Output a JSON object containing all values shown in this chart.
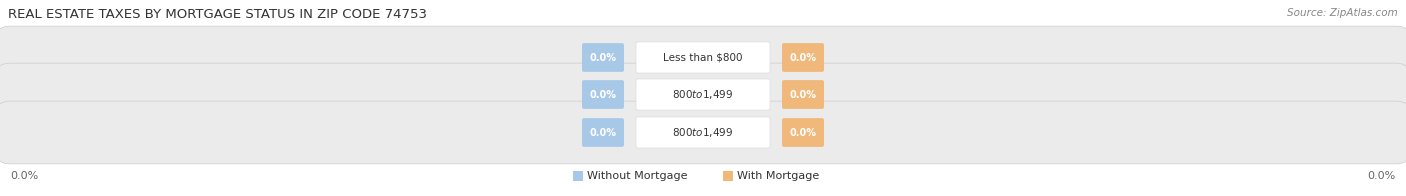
{
  "title": "REAL ESTATE TAXES BY MORTGAGE STATUS IN ZIP CODE 74753",
  "source": "Source: ZipAtlas.com",
  "categories": [
    "Less than $800",
    "$800 to $1,499",
    "$800 to $1,499"
  ],
  "without_mortgage": [
    0.0,
    0.0,
    0.0
  ],
  "with_mortgage": [
    0.0,
    0.0,
    0.0
  ],
  "bar_color_left": "#a8c8e8",
  "bar_color_right": "#f0b87a",
  "label_color_left": "#7aadd4",
  "label_color_right": "#e8a060",
  "bg_color": "#ffffff",
  "bar_bg_color": "#e8e8e8",
  "bar_bg_color2": "#f0f0f0",
  "legend_left": "Without Mortgage",
  "legend_right": "With Mortgage",
  "axis_label_left": "0.0%",
  "axis_label_right": "0.0%",
  "title_fontsize": 9.5,
  "source_fontsize": 7.5,
  "category_fontsize": 7.5,
  "value_fontsize": 7.0
}
